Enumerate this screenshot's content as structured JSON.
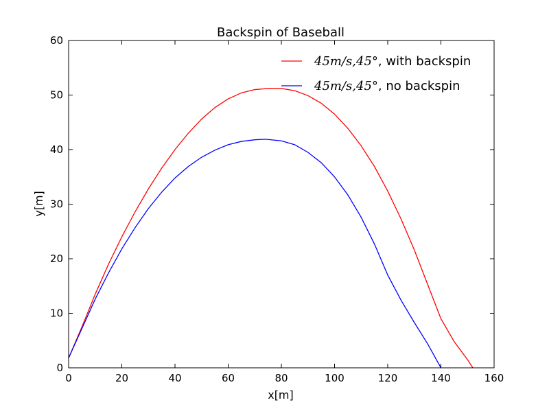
{
  "chart_data": {
    "type": "line",
    "title": "Backspin of Baseball",
    "xlabel": "x[m]",
    "ylabel": "y[m]",
    "xlim": [
      0,
      160
    ],
    "ylim": [
      0,
      60
    ],
    "x_ticks": [
      0,
      20,
      40,
      60,
      80,
      100,
      120,
      140,
      160
    ],
    "y_ticks": [
      0,
      10,
      20,
      30,
      40,
      50,
      60
    ],
    "grid": false,
    "legend_position": "top-right",
    "series": [
      {
        "name_math": "45m/s,45°",
        "name_text": ", with backspin",
        "color": "#ff0000",
        "x": [
          0,
          5,
          10,
          15,
          20,
          25,
          30,
          35,
          40,
          45,
          50,
          55,
          60,
          65,
          70,
          75,
          80,
          85,
          90,
          95,
          100,
          105,
          110,
          115,
          120,
          125,
          130,
          135,
          140,
          145,
          150,
          152
        ],
        "y": [
          1.8,
          7.5,
          13.5,
          19.0,
          24.0,
          28.6,
          32.8,
          36.6,
          40.0,
          43.0,
          45.6,
          47.7,
          49.3,
          50.4,
          51.0,
          51.2,
          51.2,
          50.8,
          49.9,
          48.5,
          46.5,
          43.9,
          40.7,
          36.9,
          32.4,
          27.3,
          21.6,
          15.3,
          9.0,
          4.8,
          1.5,
          0.0
        ]
      },
      {
        "name_math": "45m/s,45°",
        "name_text": ", no backspin",
        "color": "#0000ff",
        "x": [
          0,
          5,
          10,
          15,
          20,
          25,
          30,
          35,
          40,
          45,
          50,
          55,
          60,
          65,
          70,
          74,
          80,
          85,
          90,
          95,
          100,
          105,
          110,
          115,
          120,
          125,
          130,
          135,
          140
        ],
        "y": [
          1.8,
          7.2,
          12.6,
          17.4,
          21.8,
          25.7,
          29.2,
          32.2,
          34.8,
          36.9,
          38.6,
          39.9,
          40.9,
          41.5,
          41.8,
          41.9,
          41.6,
          40.9,
          39.5,
          37.6,
          35.0,
          31.7,
          27.6,
          22.7,
          17.0,
          12.4,
          8.3,
          4.4,
          0.0
        ]
      }
    ]
  }
}
